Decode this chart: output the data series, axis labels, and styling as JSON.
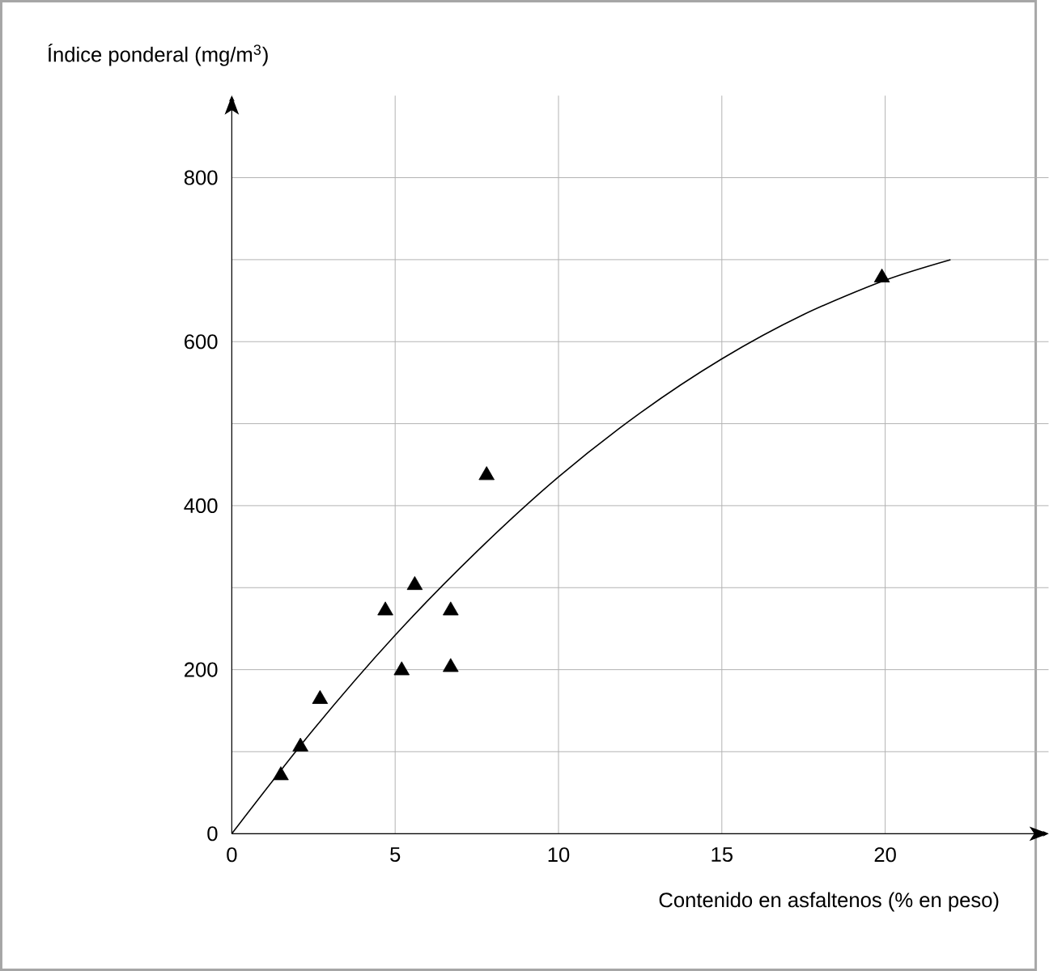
{
  "chart_data": {
    "type": "scatter",
    "xlabel": "Contenido en asfaltenos (% en peso)",
    "ylabel": "Índice ponderal (mg/m$^{3}$)",
    "xlim": [
      0,
      25
    ],
    "ylim": [
      0,
      900
    ],
    "xticks": [
      0,
      5,
      10,
      15,
      20
    ],
    "yticks": [
      0,
      {
        "value": 100,
        "label": null
      },
      200,
      {
        "value": 300,
        "label": null
      },
      400,
      {
        "value": 500,
        "label": null
      },
      600,
      {
        "value": 700,
        "label": null
      },
      800
    ],
    "grid": true,
    "series": [
      {
        "marker": "triangle",
        "color": "#000000",
        "x": [
          1.5,
          2.1,
          2.7,
          4.7,
          5.2,
          5.6,
          6.7,
          6.7,
          7.8,
          19.9
        ],
        "values": [
          71,
          106,
          164,
          272,
          199,
          303,
          272,
          203,
          437,
          678
        ]
      },
      {
        "type": "line",
        "marker": "none",
        "color": "#000000",
        "x": [
          0,
          2.5,
          5,
          7.5,
          10,
          12.5,
          15,
          17.5,
          20,
          22
        ],
        "values": [
          0,
          127,
          242,
          344,
          435,
          513,
          579,
          633,
          675,
          700
        ]
      }
    ]
  }
}
